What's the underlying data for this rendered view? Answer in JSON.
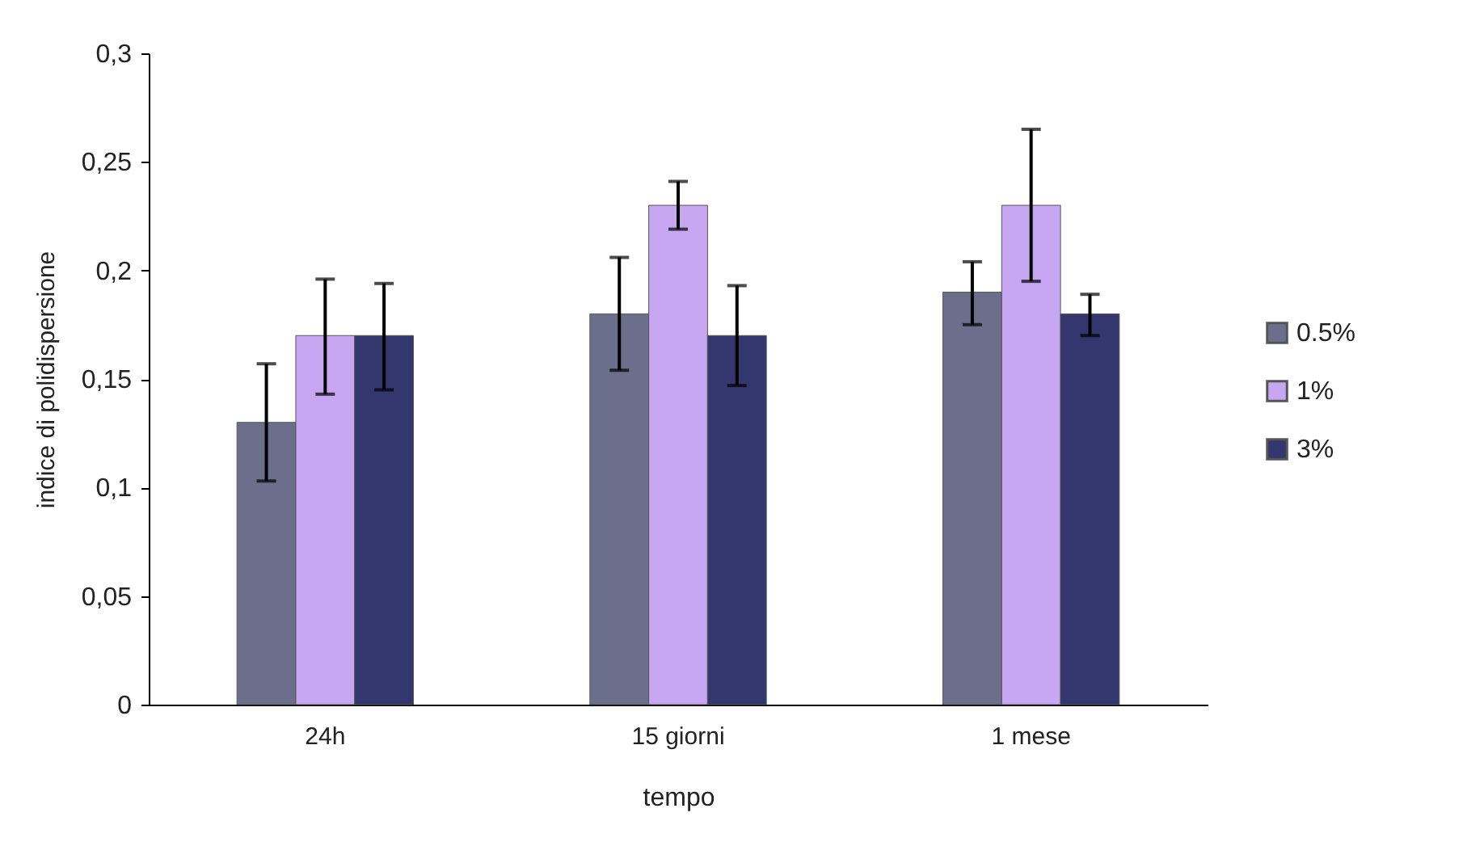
{
  "chart_data": {
    "type": "bar",
    "xlabel": "tempo",
    "ylabel": "indice di polidispersione",
    "categories": [
      "24h",
      "15 giorni",
      "1 mese"
    ],
    "series": [
      {
        "name": "0.5%",
        "color": "#6b6f8c",
        "values": [
          0.13,
          0.18,
          0.19
        ],
        "errors": [
          [
            0.103,
            0.157
          ],
          [
            0.154,
            0.206
          ],
          [
            0.175,
            0.204
          ]
        ]
      },
      {
        "name": "1%",
        "color": "#c7a6f2",
        "values": [
          0.17,
          0.23,
          0.23
        ],
        "errors": [
          [
            0.143,
            0.196
          ],
          [
            0.219,
            0.241
          ],
          [
            0.195,
            0.265
          ]
        ]
      },
      {
        "name": "3%",
        "color": "#34376e",
        "values": [
          0.17,
          0.17,
          0.18
        ],
        "errors": [
          [
            0.145,
            0.194
          ],
          [
            0.147,
            0.193
          ],
          [
            0.17,
            0.189
          ]
        ]
      }
    ],
    "ylim": [
      0,
      0.3
    ],
    "yticks": [
      {
        "value": 0,
        "label": "0"
      },
      {
        "value": 0.05,
        "label": "0,05"
      },
      {
        "value": 0.1,
        "label": "0,1"
      },
      {
        "value": 0.15,
        "label": "0,15"
      },
      {
        "value": 0.2,
        "label": "0,2"
      },
      {
        "value": 0.25,
        "label": "0,25"
      },
      {
        "value": 0.3,
        "label": "0,3"
      }
    ],
    "grid": false,
    "legend": "right"
  }
}
